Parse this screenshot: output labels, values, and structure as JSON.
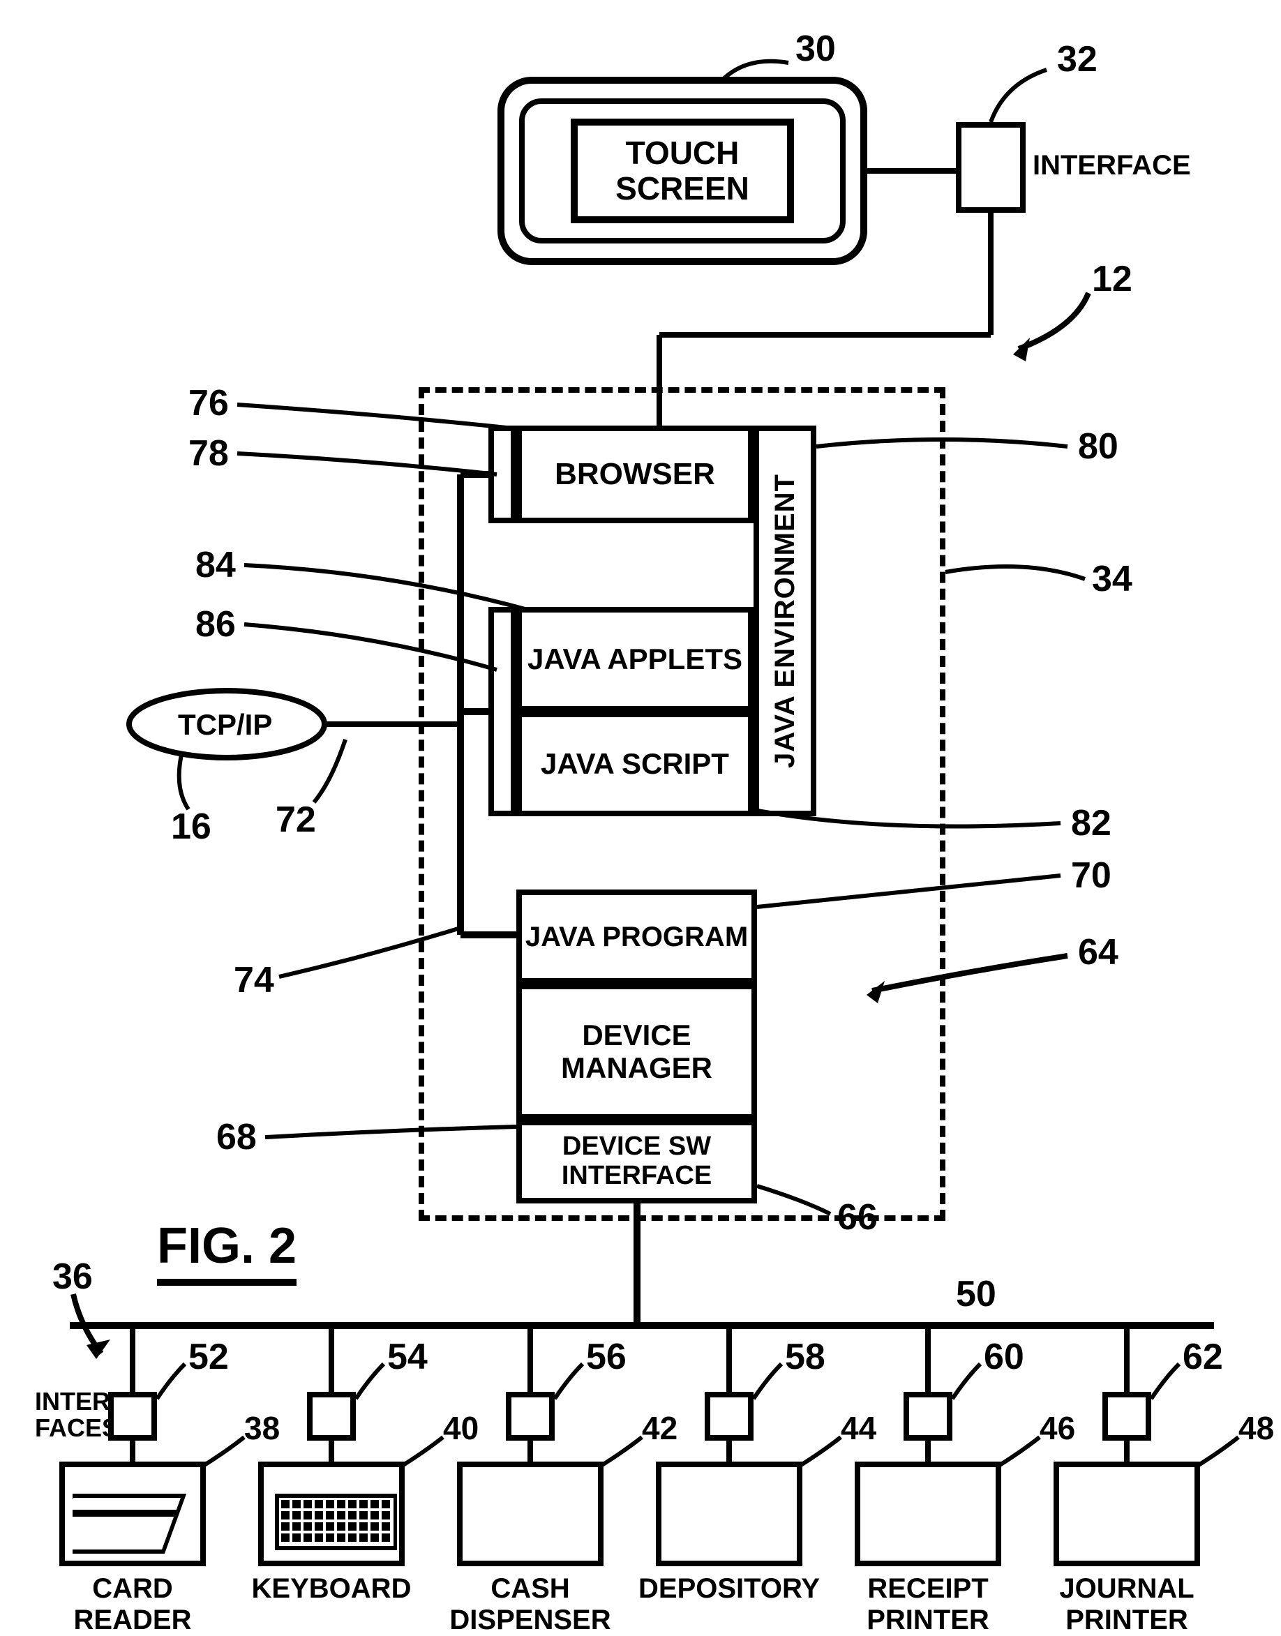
{
  "fig_label": "FIG.   2",
  "touch_screen": {
    "label": "TOUCH\nSCREEN",
    "ref": "30"
  },
  "interface_top": {
    "label": "INTERFACE",
    "ref": "32"
  },
  "dashed_ref": "12",
  "browser": {
    "label": "BROWSER",
    "ref": "76"
  },
  "slim_left_ref": "78",
  "java_env": {
    "label": "JAVA ENVIRONMENT",
    "ref": "80"
  },
  "dashed_right_ref": "34",
  "java_applets": {
    "label": "JAVA\nAPPLETS",
    "ref": "84"
  },
  "applets_slim_ref": "86",
  "java_script": {
    "label": "JAVA\nSCRIPT",
    "ref": "82"
  },
  "tcpip": {
    "label": "TCP/IP",
    "ref": "16",
    "leader_ref": "72"
  },
  "vertical_bus_ref": "74",
  "java_program": {
    "label": "JAVA\nPROGRAM",
    "ref": "70"
  },
  "prog_stack_ref": "64",
  "device_manager": {
    "label": "DEVICE\nMANAGER",
    "ref": "68"
  },
  "device_sw": {
    "label": "DEVICE SW\nINTERFACE",
    "ref": "66"
  },
  "bus_ref": "50",
  "interfaces_left": {
    "label": "INTER-\nFACES",
    "ref": "36"
  },
  "devices": [
    {
      "name": "CARD\nREADER",
      "if_ref": "52",
      "dev_ref": "38",
      "icon": "card"
    },
    {
      "name": "KEYBOARD",
      "if_ref": "54",
      "dev_ref": "40",
      "icon": "keyboard"
    },
    {
      "name": "CASH\nDISPENSER",
      "if_ref": "56",
      "dev_ref": "42",
      "icon": "none"
    },
    {
      "name": "DEPOSITORY",
      "if_ref": "58",
      "dev_ref": "44",
      "icon": "none"
    },
    {
      "name": "RECEIPT\nPRINTER",
      "if_ref": "60",
      "dev_ref": "46",
      "icon": "none"
    },
    {
      "name": "JOURNAL\nPRINTER",
      "if_ref": "62",
      "dev_ref": "48",
      "icon": "none"
    }
  ],
  "style": {
    "stroke": "#000000",
    "stroke_width": 8,
    "font_main": 44,
    "font_ref": 52
  }
}
